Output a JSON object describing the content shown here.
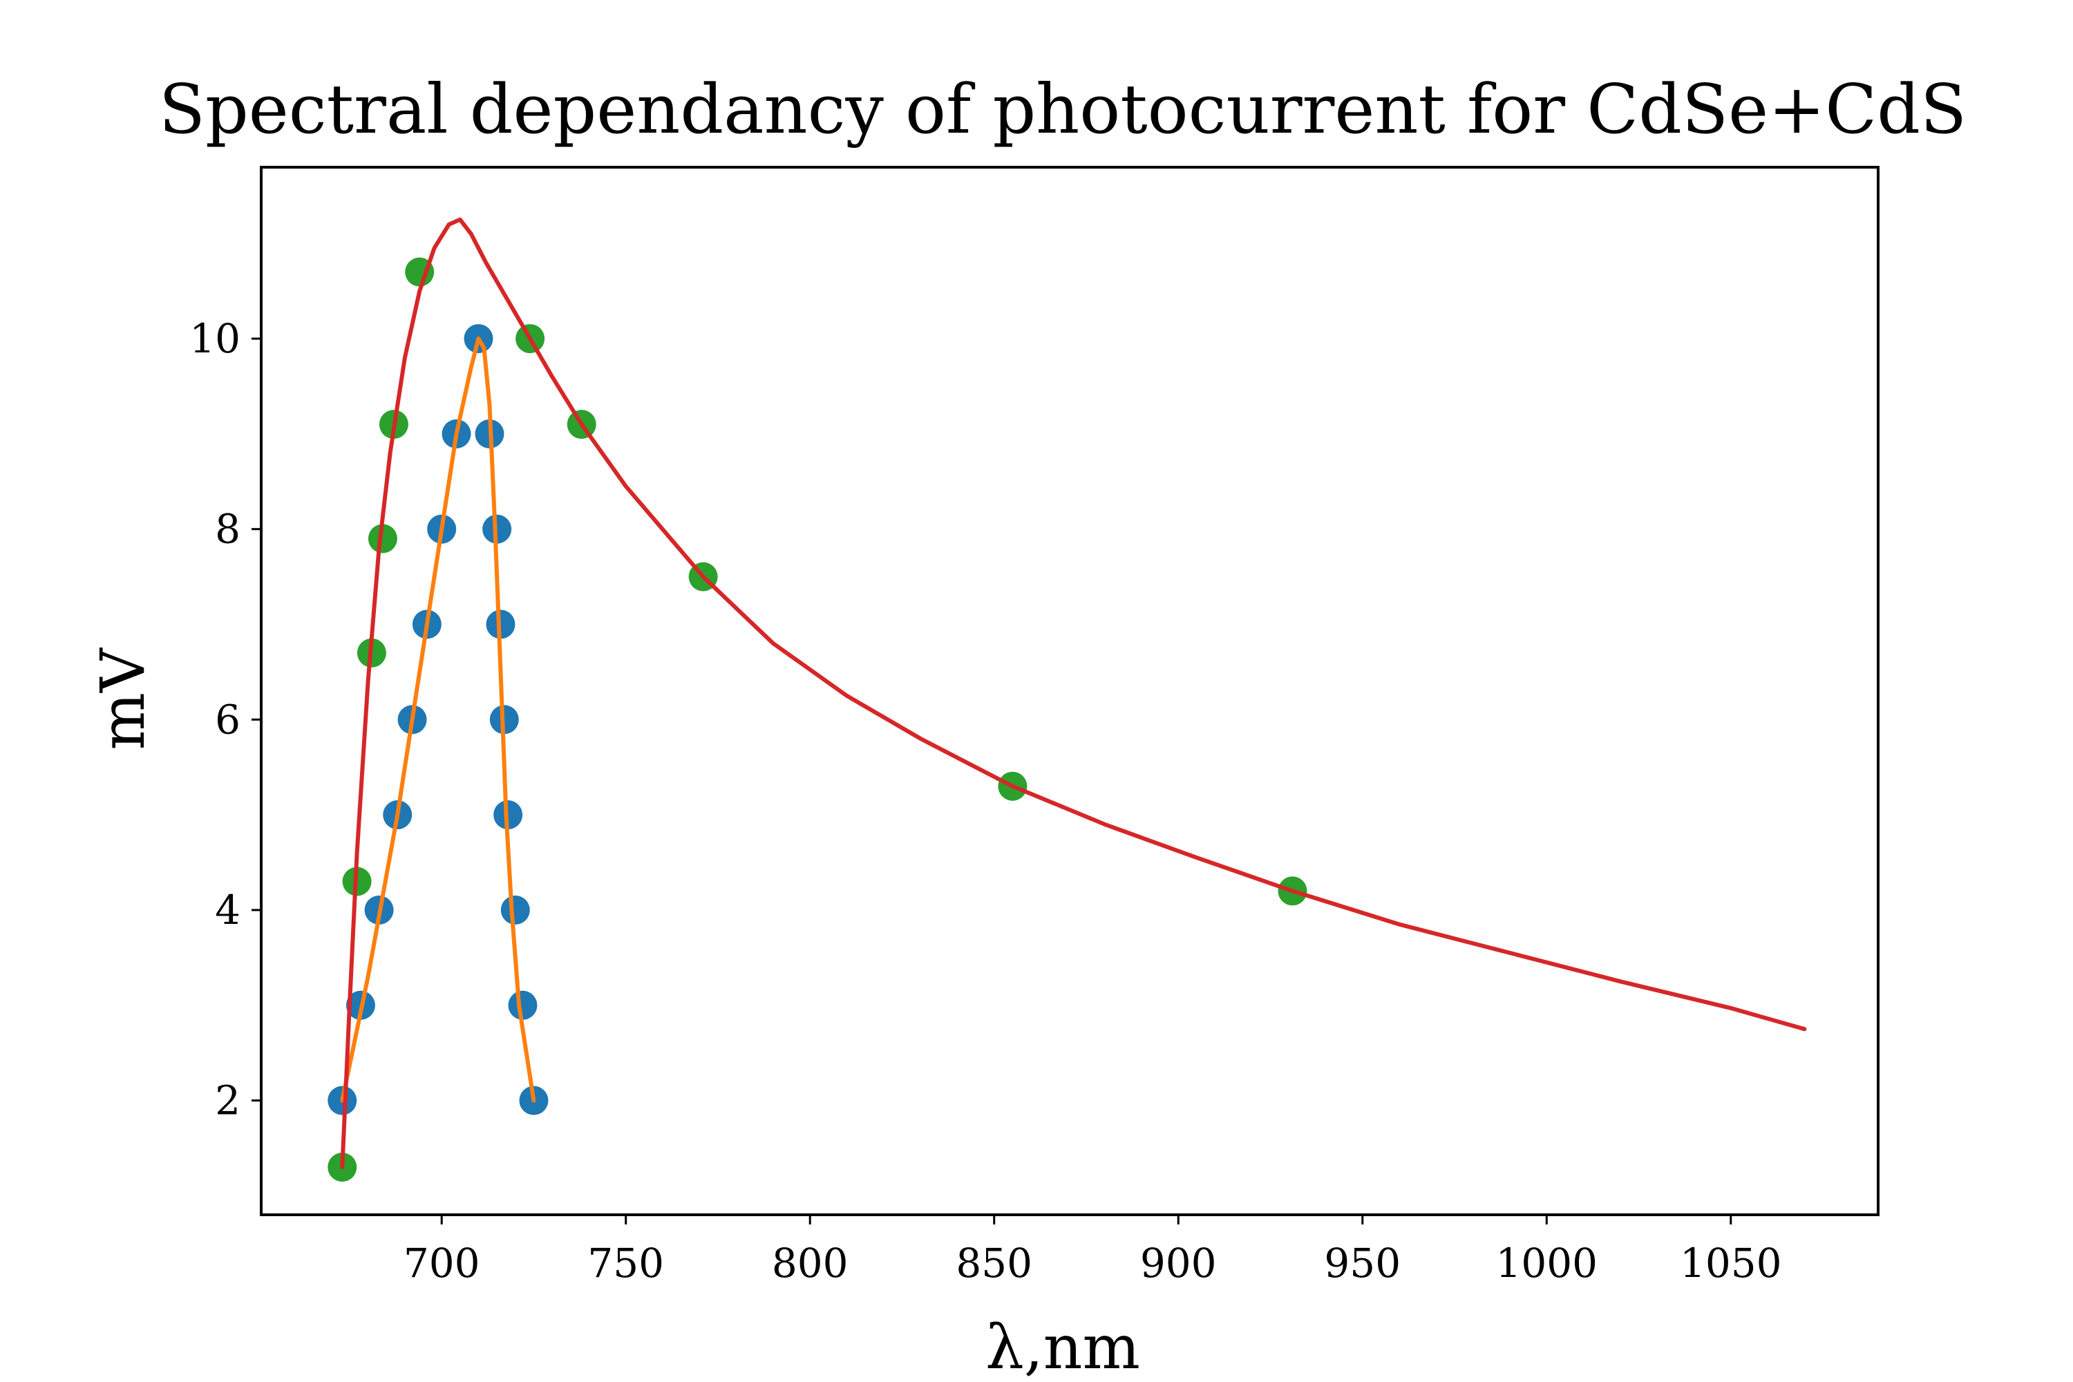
{
  "chart_data": {
    "type": "scatter",
    "title": "Spectral dependancy of photocurrent for CdSe+CdS",
    "xlabel": "λ,nm",
    "ylabel": "mV",
    "xlim": [
      651,
      1090
    ],
    "ylim": [
      0.8,
      11.8
    ],
    "x_ticks": [
      700,
      750,
      800,
      850,
      900,
      950,
      1000,
      1050
    ],
    "y_ticks": [
      2,
      4,
      6,
      8,
      10
    ],
    "grid": false,
    "legend": "none",
    "series": [
      {
        "kind": "scatter",
        "color": "#1f77b4",
        "points": [
          [
            673,
            2
          ],
          [
            678,
            3
          ],
          [
            683,
            4
          ],
          [
            688,
            5
          ],
          [
            692,
            6
          ],
          [
            696,
            7
          ],
          [
            700,
            8
          ],
          [
            704,
            9
          ],
          [
            710,
            10
          ],
          [
            713,
            9
          ],
          [
            715,
            8
          ],
          [
            716,
            7
          ],
          [
            717,
            6
          ],
          [
            718,
            5
          ],
          [
            720,
            4
          ],
          [
            722,
            3
          ],
          [
            725,
            2
          ]
        ]
      },
      {
        "kind": "line",
        "color": "#ff7f0e",
        "points": [
          [
            673,
            2
          ],
          [
            680,
            3.3
          ],
          [
            688,
            5
          ],
          [
            696,
            7
          ],
          [
            704,
            9
          ],
          [
            708,
            9.7
          ],
          [
            710,
            10
          ],
          [
            711.5,
            9.9
          ],
          [
            713,
            9.3
          ],
          [
            714.5,
            8
          ],
          [
            716,
            6.5
          ],
          [
            717.5,
            5
          ],
          [
            719,
            4
          ],
          [
            721,
            3
          ],
          [
            725,
            2
          ]
        ]
      },
      {
        "kind": "scatter",
        "color": "#2ca02c",
        "points": [
          [
            673,
            1.3
          ],
          [
            677,
            4.3
          ],
          [
            681,
            6.7
          ],
          [
            684,
            7.9
          ],
          [
            687,
            9.1
          ],
          [
            694,
            10.7
          ],
          [
            724,
            10
          ],
          [
            738,
            9.1
          ],
          [
            771,
            7.5
          ],
          [
            855,
            5.3
          ],
          [
            931,
            4.2
          ]
        ]
      },
      {
        "kind": "line",
        "color": "#d62728",
        "points": [
          [
            673,
            1.3
          ],
          [
            675,
            3.0
          ],
          [
            677,
            4.6
          ],
          [
            680,
            6.4
          ],
          [
            683,
            7.8
          ],
          [
            686,
            8.8
          ],
          [
            690,
            9.8
          ],
          [
            694,
            10.5
          ],
          [
            698,
            10.95
          ],
          [
            702,
            11.2
          ],
          [
            705,
            11.25
          ],
          [
            708,
            11.1
          ],
          [
            712,
            10.8
          ],
          [
            718,
            10.4
          ],
          [
            724,
            10.0
          ],
          [
            730,
            9.6
          ],
          [
            738,
            9.1
          ],
          [
            750,
            8.45
          ],
          [
            771,
            7.5
          ],
          [
            790,
            6.8
          ],
          [
            810,
            6.25
          ],
          [
            830,
            5.8
          ],
          [
            855,
            5.3
          ],
          [
            880,
            4.9
          ],
          [
            905,
            4.55
          ],
          [
            931,
            4.2
          ],
          [
            960,
            3.85
          ],
          [
            990,
            3.55
          ],
          [
            1020,
            3.25
          ],
          [
            1050,
            2.97
          ],
          [
            1070,
            2.75
          ]
        ]
      }
    ]
  }
}
